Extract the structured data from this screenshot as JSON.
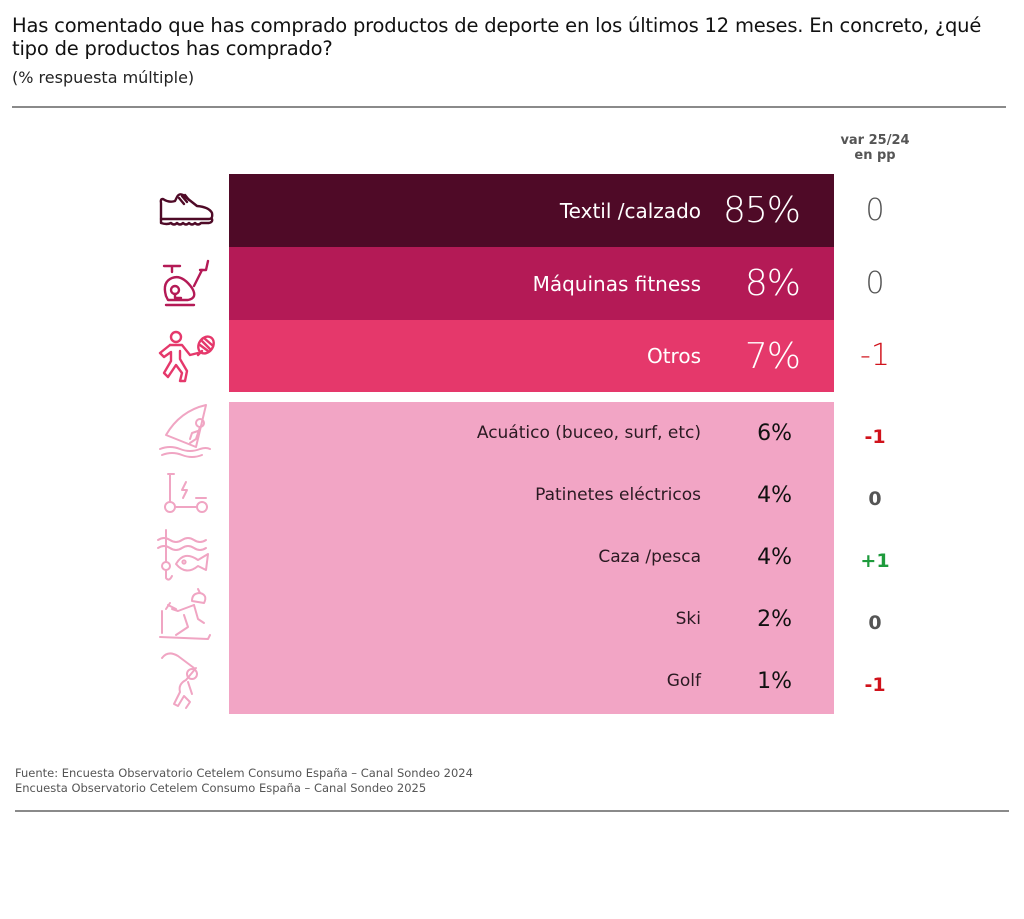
{
  "header": {
    "title": "Has comentado que has comprado productos de deporte en los últimos 12 meses. En concreto, ¿qué tipo de productos has comprado?",
    "subtitle": "(% respuesta múltiple)"
  },
  "var_header": {
    "line1": "var 25/24",
    "line2": "en pp"
  },
  "colors": {
    "textil": "#4f0a27",
    "maquinas": "#b41a56",
    "otros": "#e5386b",
    "others_block": "#f2a5c5",
    "icon_dark": "#4f0a27",
    "icon_mid": "#b41a56",
    "icon_light": "#e5386b",
    "icon_pale": "#f0a5c3",
    "var_neutral": "#555555",
    "var_negative": "#d0121b",
    "var_positive": "#1e9b3c"
  },
  "chart_data": {
    "type": "table",
    "title": "Has comentado que has comprado productos de deporte en los últimos 12 meses. En concreto, ¿qué tipo de productos has comprado?",
    "subtitle": "(% respuesta múltiple)",
    "columns": [
      "Producto",
      "%",
      "var 25/24 en pp"
    ],
    "rows": [
      {
        "label": "Textil /calzado",
        "value": 85,
        "value_label": "85%",
        "var": 0,
        "var_label": "0",
        "icon": "sneaker-icon",
        "group": "top"
      },
      {
        "label": "Máquinas fitness",
        "value": 8,
        "value_label": "8%",
        "var": 0,
        "var_label": "0",
        "icon": "exercise-bike-icon",
        "group": "top"
      },
      {
        "label": "Otros",
        "value": 7,
        "value_label": "7%",
        "var": -1,
        "var_label": "-1",
        "icon": "tennis-player-icon",
        "group": "top"
      },
      {
        "label": "Acuático (buceo, surf, etc)",
        "value": 6,
        "value_label": "6%",
        "var": -1,
        "var_label": "-1",
        "icon": "windsurf-icon",
        "group": "rest"
      },
      {
        "label": "Patinetes eléctricos",
        "value": 4,
        "value_label": "4%",
        "var": 0,
        "var_label": "0",
        "icon": "electric-scooter-icon",
        "group": "rest"
      },
      {
        "label": "Caza /pesca",
        "value": 4,
        "value_label": "4%",
        "var": 1,
        "var_label": "+1",
        "icon": "fishing-icon",
        "group": "rest"
      },
      {
        "label": "Ski",
        "value": 2,
        "value_label": "2%",
        "var": 0,
        "var_label": "0",
        "icon": "skier-icon",
        "group": "rest"
      },
      {
        "label": "Golf",
        "value": 1,
        "value_label": "1%",
        "var": -1,
        "var_label": "-1",
        "icon": "golfer-icon",
        "group": "rest"
      }
    ]
  },
  "footer": {
    "line1": "Fuente: Encuesta Observatorio Cetelem Consumo España – Canal Sondeo 2024",
    "line2": "Encuesta Observatorio Cetelem Consumo España – Canal Sondeo 2025"
  }
}
